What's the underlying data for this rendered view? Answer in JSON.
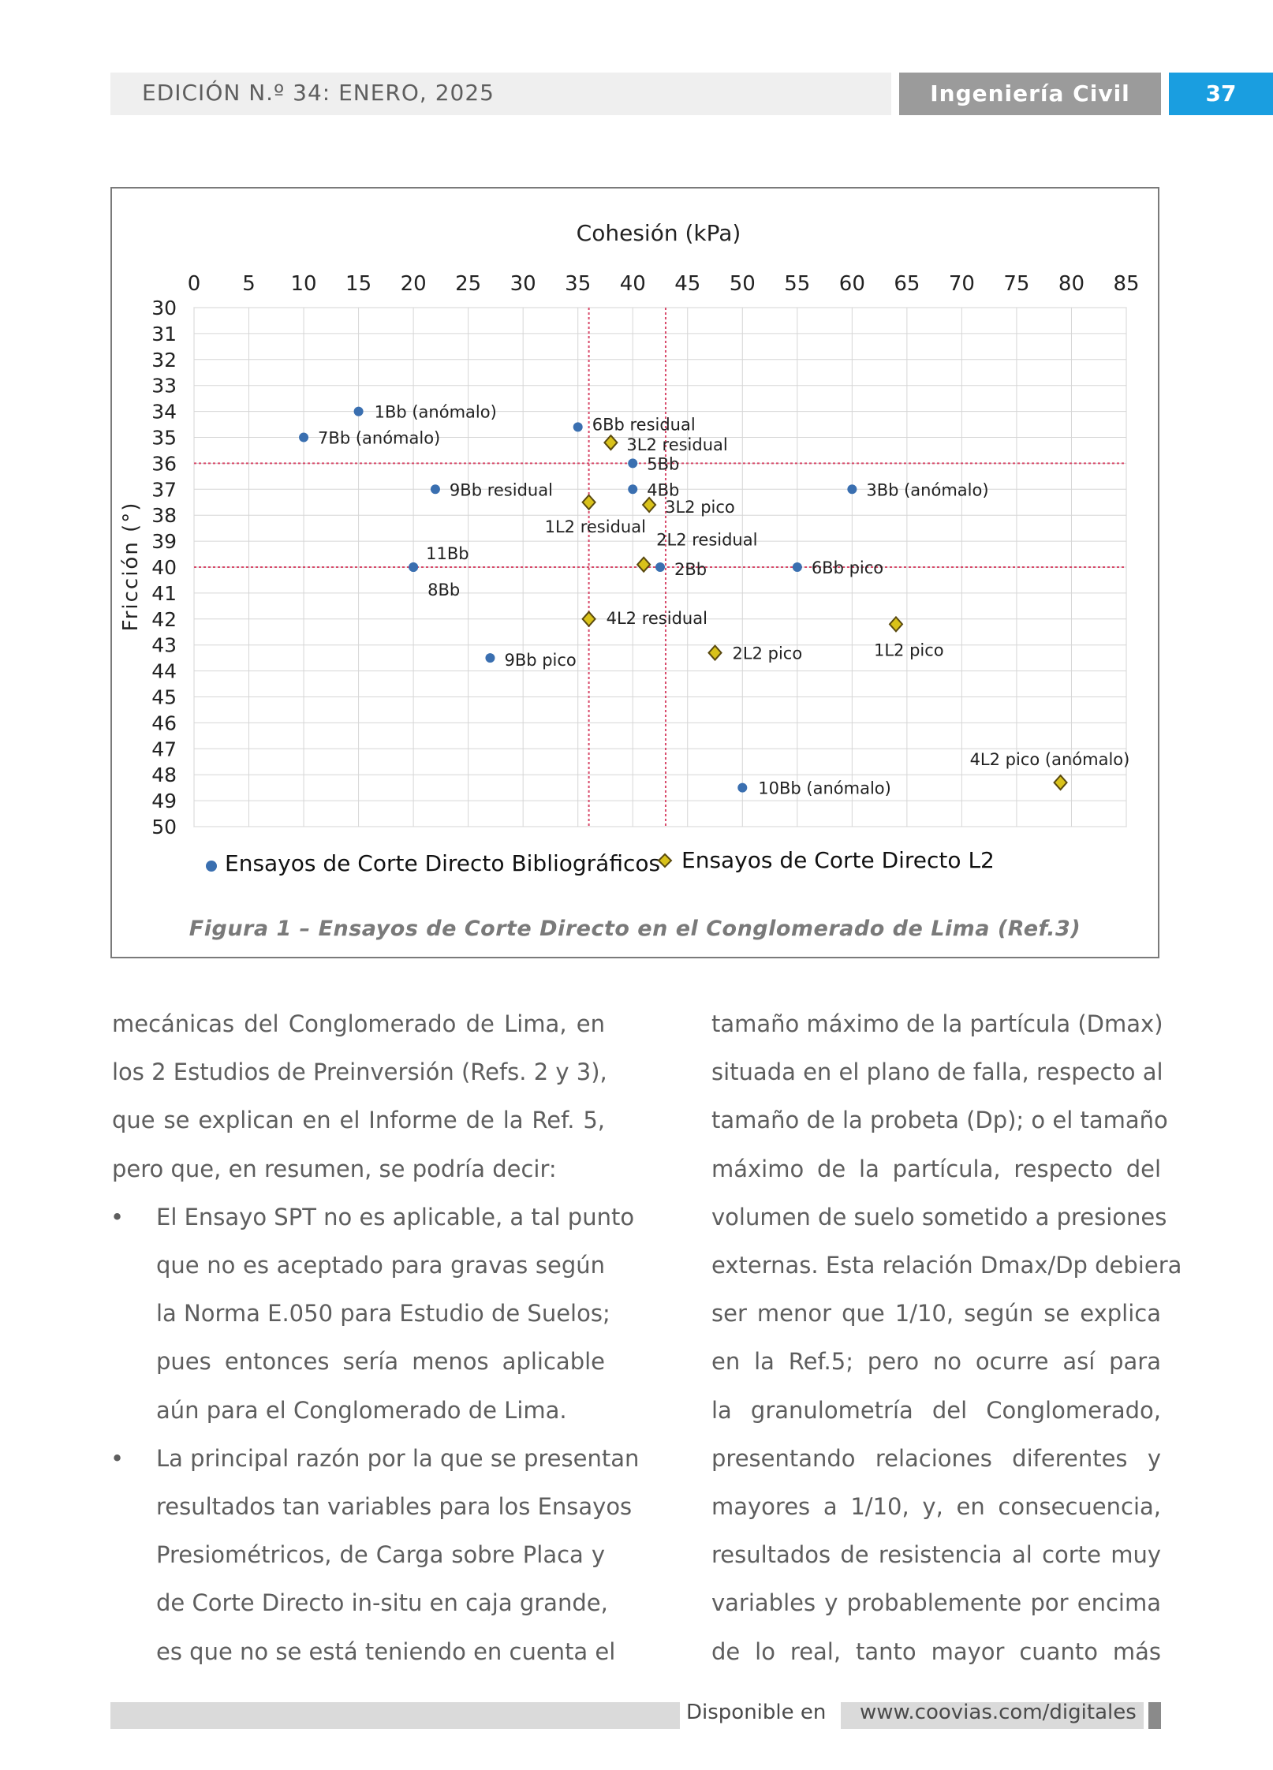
{
  "header": {
    "edition": "EDICIÓN N.º 34: ENERO, 2025",
    "section": "Ingeniería Civil",
    "page_number": "37"
  },
  "figure": {
    "caption": "Figura 1 – Ensayos de Corte Directo en el Conglomerado de Lima (Ref.3)"
  },
  "chart_data": {
    "type": "scatter",
    "title": "",
    "xlabel": "Cohesión (kPa)",
    "ylabel": "Fricción (°)",
    "xlim": [
      0,
      85
    ],
    "ylim": [
      30,
      50
    ],
    "y_inverted": true,
    "x_axis_position": "top",
    "x_ticks": [
      0,
      5,
      10,
      15,
      20,
      25,
      30,
      35,
      40,
      45,
      50,
      55,
      60,
      65,
      70,
      75,
      80,
      85
    ],
    "y_ticks": [
      30,
      31,
      32,
      33,
      34,
      35,
      36,
      37,
      38,
      39,
      40,
      41,
      42,
      43,
      44,
      45,
      46,
      47,
      48,
      49,
      50
    ],
    "grid": true,
    "legend_position": "bottom",
    "colors": {
      "biblio": "#3a6fb0",
      "l2_fill": "#d9c21a",
      "l2_edge": "#5a4a10",
      "ref_line": "#d84a6a"
    },
    "reference_lines": {
      "vertical": [
        36,
        43
      ],
      "horizontal": [
        36,
        40
      ]
    },
    "series": [
      {
        "name": "Ensayos de Corte Directo Bibliográficos",
        "marker": "circle",
        "points": [
          {
            "x": 15,
            "y": 34,
            "label": "1Bb (anómalo)"
          },
          {
            "x": 10,
            "y": 35,
            "label": "7Bb (anómalo)"
          },
          {
            "x": 35,
            "y": 34.6,
            "label": "6Bb residual"
          },
          {
            "x": 40,
            "y": 36,
            "label": "5Bb"
          },
          {
            "x": 22,
            "y": 37,
            "label": "9Bb residual"
          },
          {
            "x": 40,
            "y": 37,
            "label": "4Bb"
          },
          {
            "x": 60,
            "y": 37,
            "label": "3Bb (anómalo)"
          },
          {
            "x": 20,
            "y": 40,
            "label": "11Bb"
          },
          {
            "x": 20,
            "y": 40,
            "label": "8Bb"
          },
          {
            "x": 42.5,
            "y": 40,
            "label": "2Bb"
          },
          {
            "x": 55,
            "y": 40,
            "label": "6Bb pico"
          },
          {
            "x": 27,
            "y": 43.5,
            "label": "9Bb pico"
          },
          {
            "x": 50,
            "y": 48.5,
            "label": "10Bb (anómalo)"
          }
        ]
      },
      {
        "name": "Ensayos de Corte Directo L2",
        "marker": "diamond",
        "points": [
          {
            "x": 38,
            "y": 35.2,
            "label": "3L2 residual"
          },
          {
            "x": 36,
            "y": 37.5,
            "label": "1L2 residual"
          },
          {
            "x": 41.5,
            "y": 37.6,
            "label": "3L2 pico"
          },
          {
            "x": 41,
            "y": 39.9,
            "label": "2L2 residual"
          },
          {
            "x": 36,
            "y": 42,
            "label": "4L2 residual"
          },
          {
            "x": 47.5,
            "y": 43.3,
            "label": "2L2 pico"
          },
          {
            "x": 64,
            "y": 42.2,
            "label": "1L2 pico"
          },
          {
            "x": 79,
            "y": 48.3,
            "label": "4L2 pico (anómalo)"
          }
        ]
      }
    ]
  },
  "left_column": {
    "lines": [
      "mecánicas del Conglomerado de Lima, en",
      "los 2 Estudios de Preinversión (Refs. 2 y 3),",
      "que se explican en el Informe de la Ref. 5,",
      "pero que, en resumen, se podría decir:"
    ],
    "bullets": [
      {
        "marker": "•",
        "lines": [
          "El Ensayo SPT no es aplicable, a tal punto",
          "que no es aceptado para gravas según",
          "la Norma E.050 para Estudio de Suelos;",
          "pues entonces sería menos aplicable",
          "aún para el Conglomerado de Lima."
        ]
      },
      {
        "marker": "•",
        "lines": [
          "La principal razón por la que se presentan",
          "resultados tan variables para los Ensayos",
          "Presiométricos, de Carga sobre Placa y",
          "de Corte Directo in-situ en caja grande,",
          "es que no se está teniendo en cuenta el"
        ]
      }
    ]
  },
  "right_column": {
    "lines": [
      "tamaño máximo de la partícula (Dmax)",
      "situada en el plano de falla, respecto al",
      "tamaño de la probeta (Dp); o el tamaño",
      "máximo de la partícula, respecto del",
      "volumen de suelo sometido a presiones",
      "externas. Esta relación Dmax/Dp debiera",
      "ser menor que 1/10, según se explica",
      "en la Ref.5; pero no ocurre así para",
      "la granulometría del Conglomerado,",
      "presentando relaciones diferentes y",
      "mayores a 1/10, y, en consecuencia,",
      "resultados de resistencia al corte muy",
      "variables y probablemente por encima",
      "de lo real, tanto mayor cuanto más"
    ]
  },
  "footer": {
    "available": "Disponible en",
    "url": "www.coovias.com/digitales"
  }
}
